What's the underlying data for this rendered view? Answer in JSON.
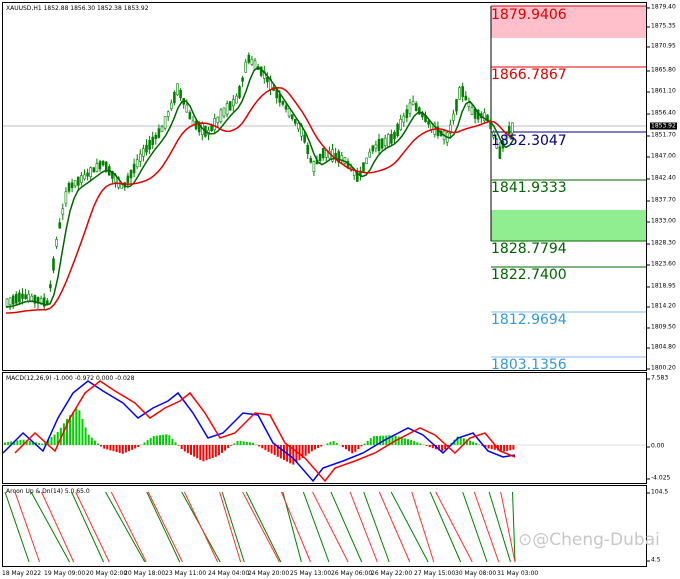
{
  "symbol_info": "XAUUSD,H1  1852.88 1856.30 1852.38 1853.92",
  "price_axis": [
    "1879.40",
    "1875.35",
    "1870.95",
    "1865.80",
    "1861.10",
    "1856.40",
    "1851.70",
    "1847.00",
    "1842.40",
    "1837.70",
    "1833.00",
    "1828.30",
    "1823.60",
    "1818.95",
    "1814.20",
    "1809.50",
    "1804.80",
    "1800.20"
  ],
  "current_price": "1853.92",
  "levels": [
    {
      "label": "1879.9406",
      "color": "#e00000"
    },
    {
      "label": "1866.7867",
      "color": "#e00000"
    },
    {
      "label": "1852.3047",
      "color": "#000080"
    },
    {
      "label": "1841.9333",
      "color": "#006400"
    },
    {
      "label": "1828.7794",
      "color": "#006400"
    },
    {
      "label": "1822.7400",
      "color": "#006400"
    },
    {
      "label": "1812.9694",
      "color": "#3399dd"
    },
    {
      "label": "1803.1356",
      "color": "#3399dd"
    }
  ],
  "macd": {
    "label": "MACD(12,26,9) -1.000 -0.972 0.000 -0.028",
    "axis": [
      "7.583",
      "0.00",
      "-4.025"
    ]
  },
  "aroon": {
    "label": "Aroon Up & Dn(14) 5.0 65.0",
    "axis": [
      "104.5",
      "4.5"
    ]
  },
  "time_axis": [
    "18 May 2022",
    "19 May 09:00",
    "20 May 02:00",
    "20 May 18:00",
    "23 May 11:00",
    "24 May 04:00",
    "24 May 20:00",
    "25 May 13:00",
    "26 May 06:00",
    "26 May 22:00",
    "27 May 15:00",
    "30 May 08:00",
    "31 May 03:00"
  ],
  "watermark": "⊙@Cheng-Dubai",
  "colors": {
    "up": "#008000",
    "down": "#008000",
    "ma_fast": "#006400",
    "ma_slow": "#e00000",
    "macd_line": "#0000ff",
    "signal_line": "#ff0000",
    "hist_pos": "#00cc00",
    "hist_neg": "#ff0000",
    "aroon_up": "#008000",
    "aroon_dn": "#ff3030"
  }
}
